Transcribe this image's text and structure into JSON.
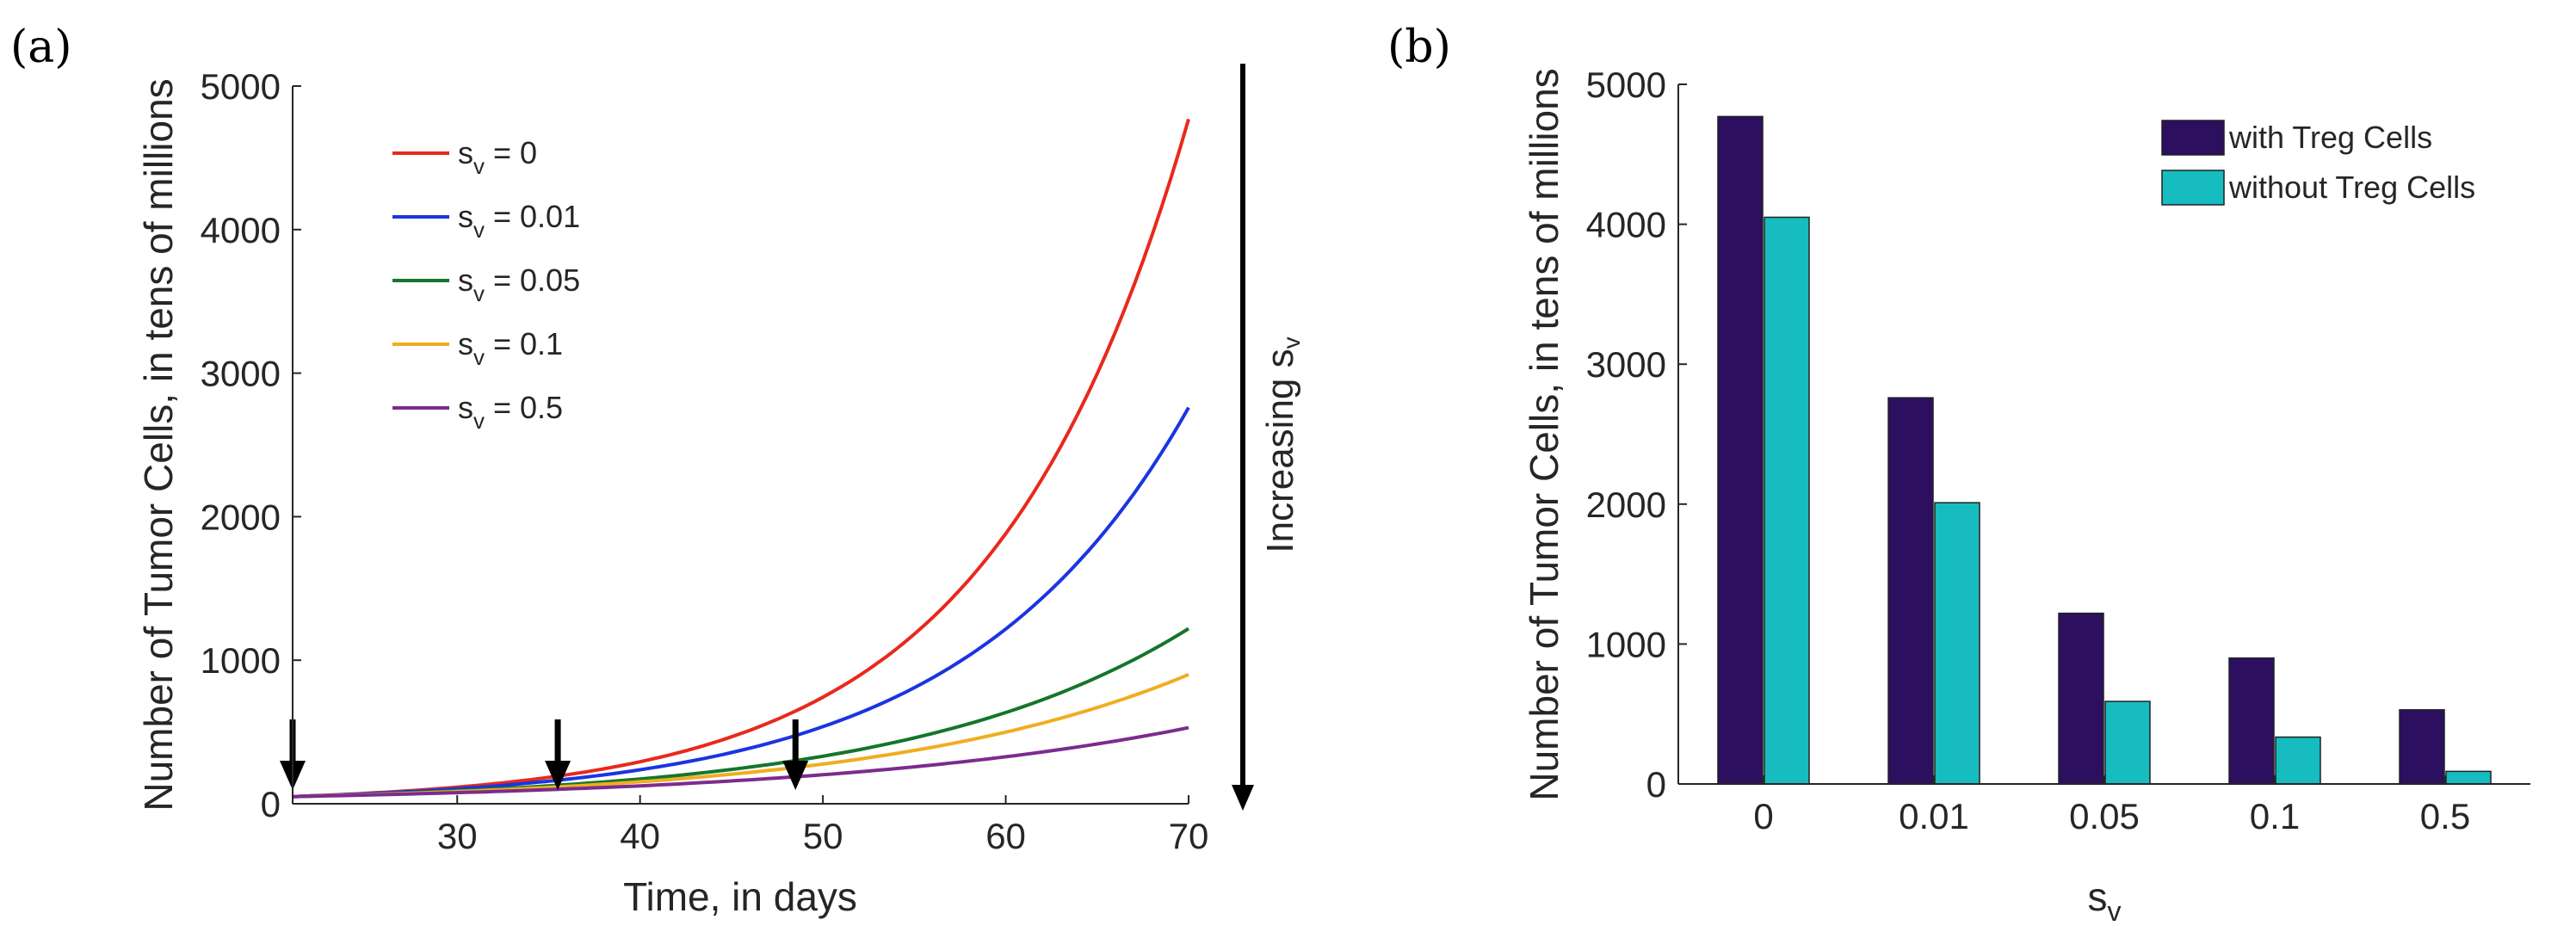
{
  "panel_labels": [
    "(a)",
    "(b)"
  ],
  "chart_data": [
    {
      "type": "line",
      "panel": "(a)",
      "xlabel": "Time, in days",
      "ylabel": "Number of Tumor Cells, in tens of millions",
      "xlim": [
        21,
        70
      ],
      "ylim": [
        0,
        5000
      ],
      "xticks": [
        30,
        40,
        50,
        60,
        70
      ],
      "yticks": [
        0,
        1000,
        2000,
        3000,
        4000,
        5000
      ],
      "growth_start_day": 21,
      "start_value": 50,
      "series": [
        {
          "name": "s",
          "sub": "v",
          "value_label": " = 0",
          "color": "#e8291c",
          "end_value": 4770
        },
        {
          "name": "s",
          "sub": "v",
          "value_label": " = 0.01",
          "color": "#1a35e0",
          "end_value": 2760
        },
        {
          "name": "s",
          "sub": "v",
          "value_label": " = 0.05",
          "color": "#14762b",
          "end_value": 1220
        },
        {
          "name": "s",
          "sub": "v",
          "value_label": " = 0.1",
          "color": "#f0ad22",
          "end_value": 900
        },
        {
          "name": "s",
          "sub": "v",
          "value_label": " = 0.5",
          "color": "#7b2c8e",
          "end_value": 530
        }
      ],
      "dose_arrows_days": [
        21,
        35.5,
        48.5
      ],
      "annotation": {
        "text": "Increasing s",
        "sub": "v"
      }
    },
    {
      "type": "bar",
      "panel": "(b)",
      "xlabel": "s",
      "xlabel_sub": "v",
      "ylabel": "Number of Tumor Cells, in tens of millions",
      "ylim": [
        0,
        5000
      ],
      "yticks": [
        0,
        1000,
        2000,
        3000,
        4000,
        5000
      ],
      "categories": [
        "0",
        "0.01",
        "0.05",
        "0.1",
        "0.5"
      ],
      "series": [
        {
          "name": "with Treg Cells",
          "color": "#2c0f5e",
          "values": [
            4770,
            2760,
            1220,
            900,
            530
          ]
        },
        {
          "name": "without Treg Cells",
          "color": "#16bcbf",
          "values": [
            4050,
            2010,
            590,
            335,
            90
          ]
        }
      ]
    }
  ]
}
